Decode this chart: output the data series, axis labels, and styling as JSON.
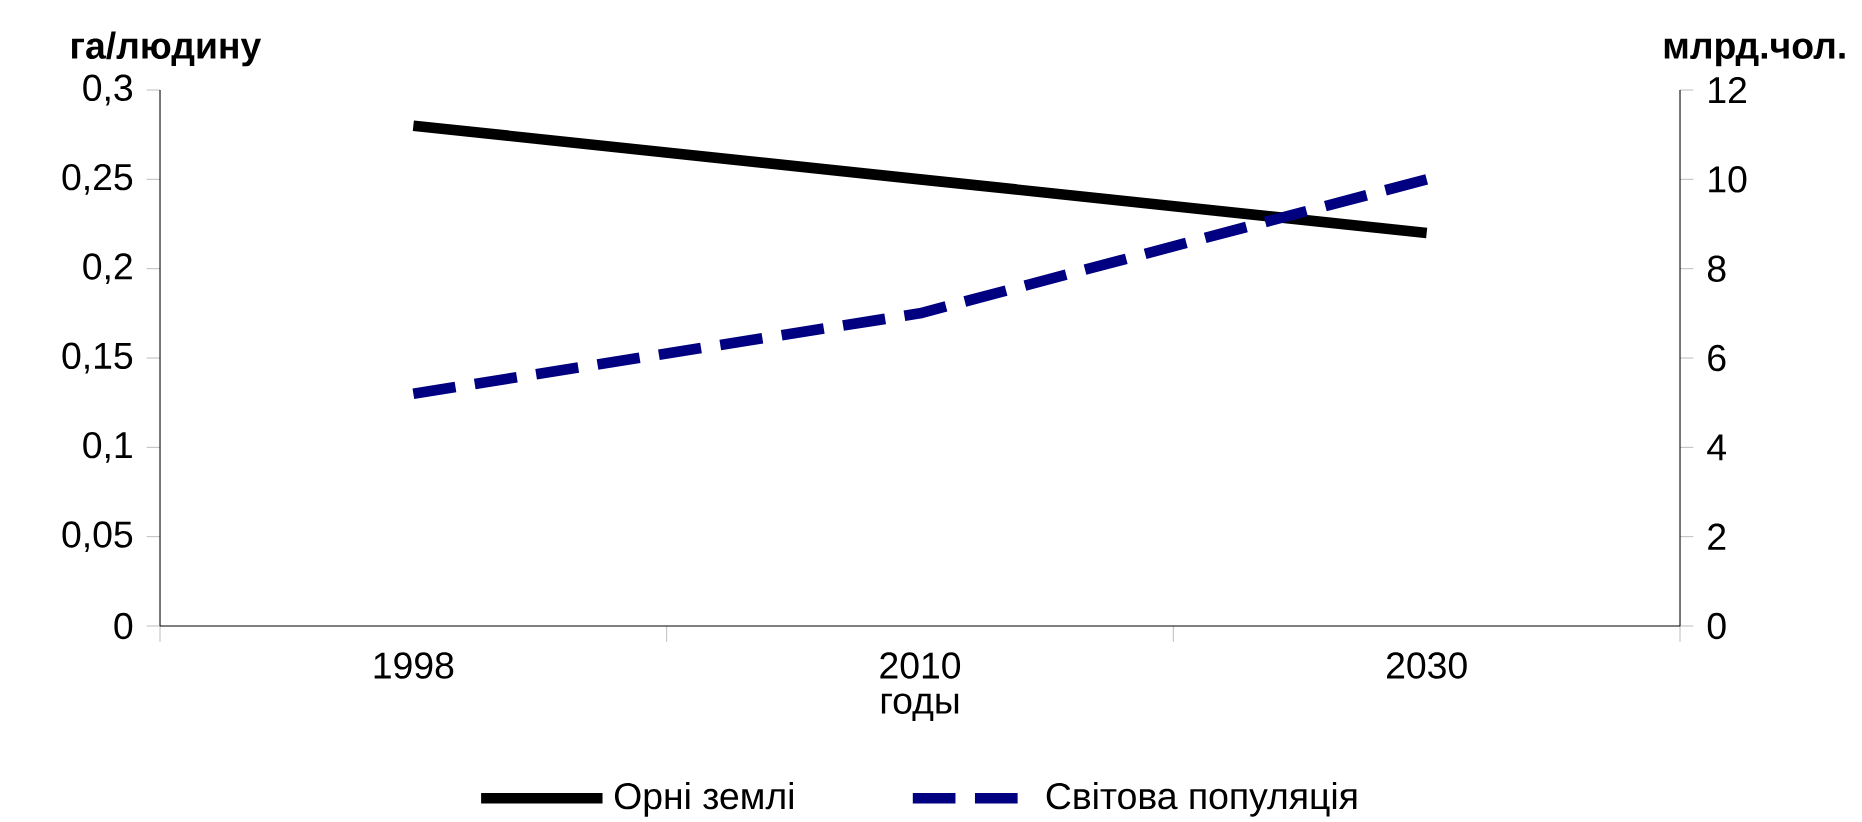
{
  "chart_data": {
    "type": "line",
    "xlabel": "годы",
    "ylabel": "га/людину",
    "y2label": "млрд.чол.",
    "categories": [
      "1998",
      "2010",
      "2030"
    ],
    "series": [
      {
        "name": "Орні землі",
        "color": "#000000",
        "line_style": "solid",
        "values": [
          0.28,
          0.25,
          0.22
        ]
      },
      {
        "name": "Світова популяція",
        "color": "#000080",
        "line_style": "dashed",
        "axis": "y2",
        "values": [
          5.2,
          7.0,
          10.0
        ]
      }
    ],
    "ylim": [
      0,
      0.3
    ],
    "yticks": [
      0,
      {
        "value": 0.05,
        "label": "0,05"
      },
      {
        "value": 0.1,
        "label": "0,1"
      },
      {
        "value": 0.15,
        "label": "0,15"
      },
      {
        "value": 0.2,
        "label": "0,2"
      },
      {
        "value": 0.25,
        "label": "0,25"
      },
      {
        "value": 0.3,
        "label": "0,3"
      }
    ],
    "y2lim": [
      0,
      12
    ],
    "y2ticks": [
      0,
      2,
      4,
      6,
      8,
      10,
      12
    ],
    "grid": false,
    "legend": "bottom",
    "marker": "none"
  }
}
